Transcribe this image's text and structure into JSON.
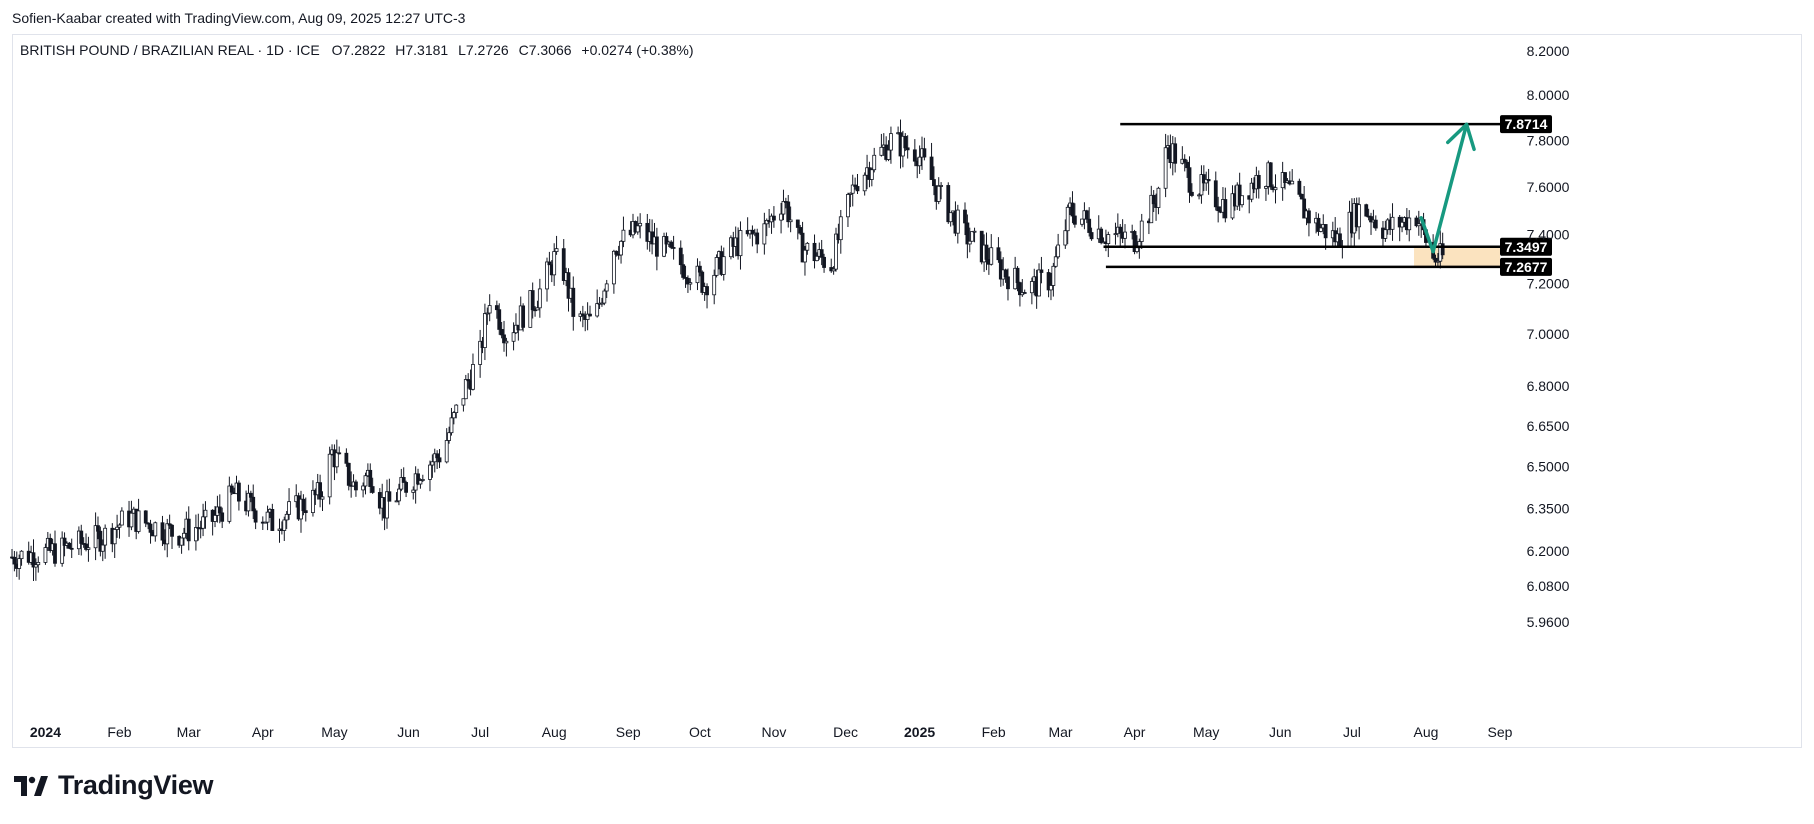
{
  "header": {
    "credit": "Sofien-Kaabar created with TradingView.com, Aug 09, 2025 12:27 UTC-3"
  },
  "footer": {
    "brand": "TradingView",
    "logo_icon": "tradingview-logo-icon"
  },
  "colors": {
    "candle": "#131722",
    "level": "#000000",
    "arrow": "#179980",
    "zone": "#fbe3bf",
    "grid_border": "#e0e3eb"
  },
  "chart_data": {
    "type": "candlestick",
    "title": "BRITISH POUND / BRAZILIAN REAL · 1D · ICE",
    "ohlc_label": {
      "open": "O7.2822",
      "high": "H7.3181",
      "low": "L7.2726",
      "close": "C7.3066",
      "change": "+0.0274 (+0.38%)"
    },
    "y_axis": {
      "scale": "log",
      "range": [
        5.9,
        8.25
      ],
      "ticks": [
        "8.2000",
        "8.0000",
        "7.8000",
        "7.6000",
        "7.4000",
        "7.2000",
        "7.0000",
        "6.8000",
        "6.6500",
        "6.5000",
        "6.3500",
        "6.2000",
        "6.0800",
        "5.9600"
      ]
    },
    "x_axis": {
      "range": [
        "2023-12-18",
        "2025-09-01"
      ],
      "ticks": [
        {
          "label": "2024",
          "date": "2024-01-01",
          "bold": true
        },
        {
          "label": "Feb",
          "date": "2024-02-01",
          "bold": false
        },
        {
          "label": "Mar",
          "date": "2024-03-01",
          "bold": false
        },
        {
          "label": "Apr",
          "date": "2024-04-01",
          "bold": false
        },
        {
          "label": "May",
          "date": "2024-05-01",
          "bold": false
        },
        {
          "label": "Jun",
          "date": "2024-06-01",
          "bold": false
        },
        {
          "label": "Jul",
          "date": "2024-07-01",
          "bold": false
        },
        {
          "label": "Aug",
          "date": "2024-08-01",
          "bold": false
        },
        {
          "label": "Sep",
          "date": "2024-09-01",
          "bold": false
        },
        {
          "label": "Oct",
          "date": "2024-10-01",
          "bold": false
        },
        {
          "label": "Nov",
          "date": "2024-11-01",
          "bold": false
        },
        {
          "label": "Dec",
          "date": "2024-12-01",
          "bold": false
        },
        {
          "label": "2025",
          "date": "2025-01-01",
          "bold": true
        },
        {
          "label": "Feb",
          "date": "2025-02-01",
          "bold": false
        },
        {
          "label": "Mar",
          "date": "2025-03-01",
          "bold": false
        },
        {
          "label": "Apr",
          "date": "2025-04-01",
          "bold": false
        },
        {
          "label": "May",
          "date": "2025-05-01",
          "bold": false
        },
        {
          "label": "Jun",
          "date": "2025-06-01",
          "bold": false
        },
        {
          "label": "Jul",
          "date": "2025-07-01",
          "bold": false
        },
        {
          "label": "Aug",
          "date": "2025-08-01",
          "bold": false
        },
        {
          "label": "Sep",
          "date": "2025-09-01",
          "bold": false
        }
      ]
    },
    "close_path": [
      {
        "date": "2023-12-18",
        "close": 6.18
      },
      {
        "date": "2024-01-05",
        "close": 6.2
      },
      {
        "date": "2024-01-25",
        "close": 6.25
      },
      {
        "date": "2024-02-05",
        "close": 6.32
      },
      {
        "date": "2024-02-25",
        "close": 6.26
      },
      {
        "date": "2024-03-10",
        "close": 6.3
      },
      {
        "date": "2024-03-20",
        "close": 6.4
      },
      {
        "date": "2024-04-05",
        "close": 6.3
      },
      {
        "date": "2024-04-25",
        "close": 6.4
      },
      {
        "date": "2024-04-30",
        "close": 6.55
      },
      {
        "date": "2024-05-10",
        "close": 6.42
      },
      {
        "date": "2024-05-16",
        "close": 6.48
      },
      {
        "date": "2024-05-22",
        "close": 6.35
      },
      {
        "date": "2024-06-05",
        "close": 6.48
      },
      {
        "date": "2024-06-15",
        "close": 6.55
      },
      {
        "date": "2024-06-25",
        "close": 6.8
      },
      {
        "date": "2024-07-01",
        "close": 6.92
      },
      {
        "date": "2024-07-05",
        "close": 7.15
      },
      {
        "date": "2024-07-12",
        "close": 7.0
      },
      {
        "date": "2024-07-25",
        "close": 7.15
      },
      {
        "date": "2024-08-01",
        "close": 7.3
      },
      {
        "date": "2024-08-05",
        "close": 7.25
      },
      {
        "date": "2024-08-10",
        "close": 7.05
      },
      {
        "date": "2024-08-18",
        "close": 7.05
      },
      {
        "date": "2024-08-26",
        "close": 7.35
      },
      {
        "date": "2024-09-05",
        "close": 7.42
      },
      {
        "date": "2024-09-18",
        "close": 7.32
      },
      {
        "date": "2024-10-03",
        "close": 7.2
      },
      {
        "date": "2024-10-15",
        "close": 7.35
      },
      {
        "date": "2024-10-28",
        "close": 7.42
      },
      {
        "date": "2024-11-05",
        "close": 7.55
      },
      {
        "date": "2024-11-12",
        "close": 7.35
      },
      {
        "date": "2024-11-25",
        "close": 7.28
      },
      {
        "date": "2024-12-05",
        "close": 7.62
      },
      {
        "date": "2024-12-20",
        "close": 7.8
      },
      {
        "date": "2024-12-31",
        "close": 7.75
      },
      {
        "date": "2025-01-10",
        "close": 7.55
      },
      {
        "date": "2025-01-20",
        "close": 7.4
      },
      {
        "date": "2025-02-05",
        "close": 7.25
      },
      {
        "date": "2025-02-15",
        "close": 7.18
      },
      {
        "date": "2025-02-25",
        "close": 7.22
      },
      {
        "date": "2025-03-05",
        "close": 7.5
      },
      {
        "date": "2025-03-20",
        "close": 7.4
      },
      {
        "date": "2025-04-01",
        "close": 7.38
      },
      {
        "date": "2025-04-10",
        "close": 7.55
      },
      {
        "date": "2025-04-15",
        "close": 7.78
      },
      {
        "date": "2025-04-25",
        "close": 7.62
      },
      {
        "date": "2025-05-10",
        "close": 7.52
      },
      {
        "date": "2025-05-25",
        "close": 7.66
      },
      {
        "date": "2025-06-05",
        "close": 7.58
      },
      {
        "date": "2025-06-15",
        "close": 7.45
      },
      {
        "date": "2025-06-25",
        "close": 7.38
      },
      {
        "date": "2025-07-05",
        "close": 7.52
      },
      {
        "date": "2025-07-15",
        "close": 7.42
      },
      {
        "date": "2025-07-28",
        "close": 7.48
      },
      {
        "date": "2025-08-04",
        "close": 7.3
      },
      {
        "date": "2025-08-08",
        "close": 7.3066
      }
    ],
    "horizontal_levels": [
      {
        "label": "7.8714",
        "value": 7.8714,
        "from": "2025-03-26"
      },
      {
        "label": "7.3497",
        "value": 7.3497,
        "from": "2025-03-19"
      },
      {
        "label": "7.2677",
        "value": 7.2677,
        "from": "2025-03-20"
      }
    ],
    "highlight_zone": {
      "from": "2025-07-27",
      "to": "2025-09-01",
      "low": 7.2677,
      "high": 7.3497
    },
    "projection_arrows": [
      {
        "from": {
          "date": "2025-07-30",
          "value": 7.47
        },
        "to": {
          "date": "2025-08-04",
          "value": 7.33
        }
      },
      {
        "from": {
          "date": "2025-08-04",
          "value": 7.33
        },
        "to": {
          "date": "2025-08-18",
          "value": 7.87
        }
      }
    ]
  }
}
